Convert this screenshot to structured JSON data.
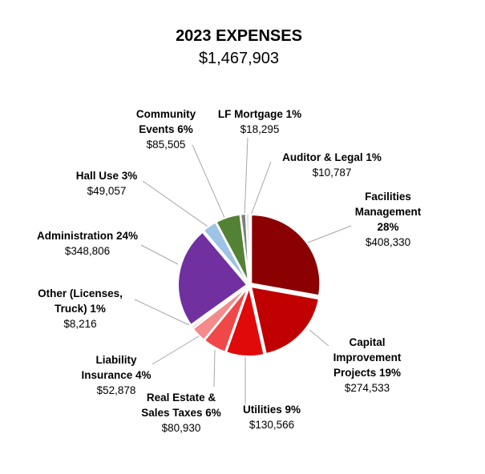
{
  "chart_data": {
    "type": "pie",
    "title": "2023 EXPENSES",
    "subtitle": "$1,467,903",
    "slices": [
      {
        "name": "Facilities Management",
        "label_lines": [
          "Facilities",
          "Management",
          "28%"
        ],
        "percent_label": "28%",
        "value": 408330,
        "value_label": "$408,330",
        "color": "#8b0000"
      },
      {
        "name": "Capital Improvement Projects",
        "label_lines": [
          "Capital",
          "Improvement",
          "Projects 19%"
        ],
        "percent_label": "19%",
        "value": 274533,
        "value_label": "$274,533",
        "color": "#c00000"
      },
      {
        "name": "Utilities",
        "label_lines": [
          "Utilities 9%"
        ],
        "percent_label": "9%",
        "value": 130566,
        "value_label": "$130,566",
        "color": "#e00a0a"
      },
      {
        "name": "Real Estate & Sales Taxes",
        "label_lines": [
          "Real Estate &",
          "Sales Taxes 6%"
        ],
        "percent_label": "6%",
        "value": 80930,
        "value_label": "$80,930",
        "color": "#f04848"
      },
      {
        "name": "Liability Insurance",
        "label_lines": [
          "Liability",
          "Insurance 4%"
        ],
        "percent_label": "4%",
        "value": 52878,
        "value_label": "$52,878",
        "color": "#f58a8a"
      },
      {
        "name": "Other (Licenses, Truck)",
        "label_lines": [
          "Other (Licenses,",
          "Truck) 1%"
        ],
        "percent_label": "1%",
        "value": 8216,
        "value_label": "$8,216",
        "color": "#f9b8b8"
      },
      {
        "name": "Administration",
        "label_lines": [
          "Administration 24%"
        ],
        "percent_label": "24%",
        "value": 348806,
        "value_label": "$348,806",
        "color": "#7030a0"
      },
      {
        "name": "Hall Use",
        "label_lines": [
          "Hall Use 3%"
        ],
        "percent_label": "3%",
        "value": 49057,
        "value_label": "$49,057",
        "color": "#9dc3e6"
      },
      {
        "name": "Community Events",
        "label_lines": [
          "Community",
          "Events 6%"
        ],
        "percent_label": "6%",
        "value": 85505,
        "value_label": "$85,505",
        "color": "#548235"
      },
      {
        "name": "LF Mortgage",
        "label_lines": [
          "LF Mortgage 1%"
        ],
        "percent_label": "1%",
        "value": 18295,
        "value_label": "$18,295",
        "color": "#7f7f7f"
      },
      {
        "name": "Auditor & Legal",
        "label_lines": [
          "Auditor & Legal 1%"
        ],
        "percent_label": "1%",
        "value": 10787,
        "value_label": "$10,787",
        "color": "#d9d9d9"
      }
    ],
    "legend": "none"
  }
}
